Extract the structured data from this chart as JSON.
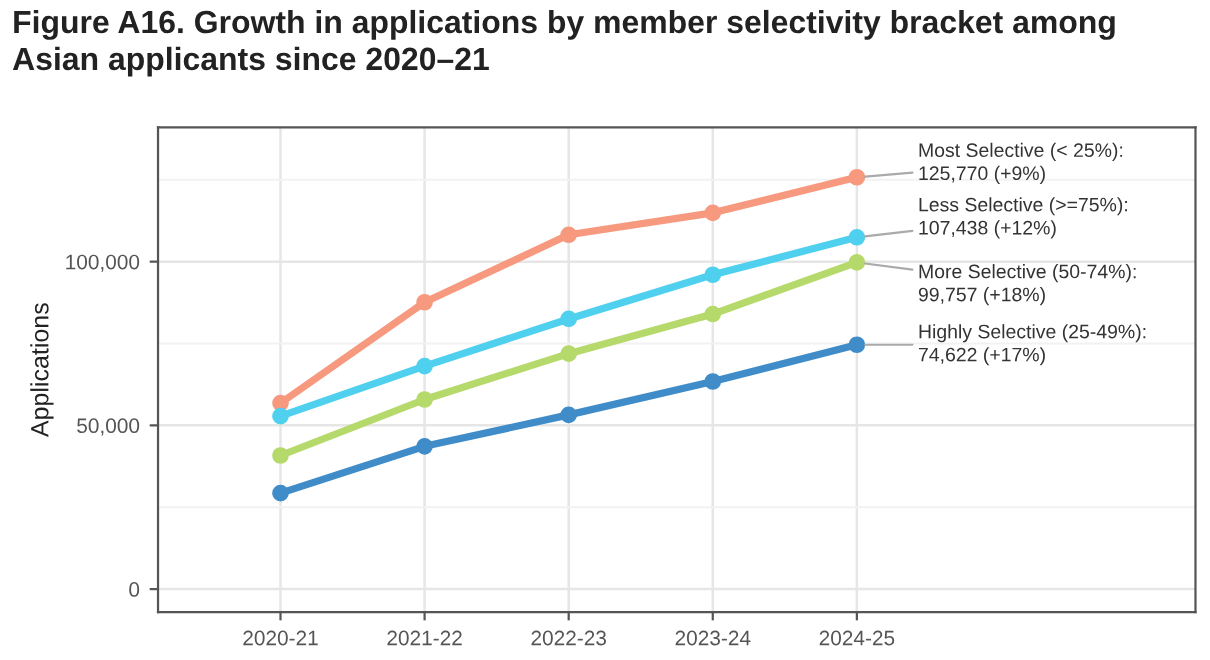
{
  "chart_data": {
    "type": "line",
    "title": "Figure A16. Growth in applications by member selectivity bracket among Asian applicants since 2020–21",
    "ylabel": "Applications",
    "categories": [
      "2020-21",
      "2021-22",
      "2022-23",
      "2023-24",
      "2024-25"
    ],
    "series": [
      {
        "name": "Most Selective (< 25%):",
        "color": "#f7997e",
        "values": [
          56800,
          87600,
          108200,
          114900,
          125770
        ],
        "value_labels": [
          null,
          null,
          null,
          null,
          "125,770 (+9%)"
        ]
      },
      {
        "name": "Less Selective (>=75%):",
        "color": "#4fd0ee",
        "values": [
          52800,
          68100,
          82500,
          96000,
          107438
        ],
        "value_labels": [
          null,
          null,
          null,
          null,
          "107,438 (+12%)"
        ]
      },
      {
        "name": "More Selective (50-74%):",
        "color": "#b5d96a",
        "values": [
          40800,
          57900,
          71900,
          84000,
          99757
        ],
        "value_labels": [
          null,
          null,
          null,
          null,
          "99,757 (+18%)"
        ]
      },
      {
        "name": "Highly Selective (25-49%):",
        "color": "#3f8cc8",
        "values": [
          29300,
          43600,
          53200,
          63400,
          74622
        ],
        "value_labels": [
          null,
          null,
          null,
          null,
          "74,622 (+17%)"
        ]
      }
    ],
    "ylim": [
      -7000,
      141000
    ],
    "yticks": [
      0,
      {
        "value": 50000,
        "label": "50,000"
      },
      {
        "value": 100000,
        "label": "100,000"
      }
    ],
    "grid": true,
    "legend": false,
    "marker": "circle",
    "line_style": "solid"
  }
}
